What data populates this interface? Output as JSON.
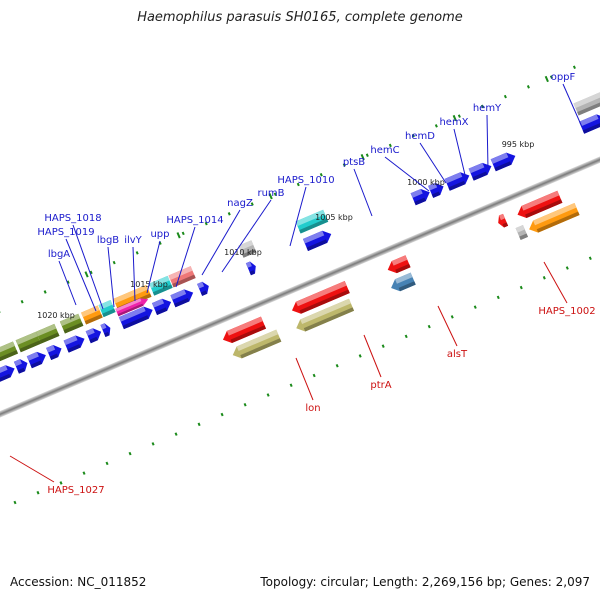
{
  "title": "Haemophilus parasuis SH0165, complete genome",
  "accession_text": "Accession: NC_011852",
  "summary_text": "Topology: circular; Length: 2,269,156 bp; Genes: 2,097",
  "colors": {
    "backbone": "#8a8a8a",
    "tick": "#1a8a1a",
    "label_blue": "#1a1acc",
    "label_red": "#cc1111",
    "forward": "#1414e0",
    "red": "#ee1111",
    "olive": "#6b8e23",
    "khaki": "#bdb76b",
    "orange": "#ff9a10",
    "cyan": "#22cccc",
    "magenta": "#ee22aa",
    "pink": "#ee7777",
    "gray": "#b4b4b4",
    "steel": "#4682b4"
  },
  "scale_labels": [
    "1020 kbp",
    "1015 kbp",
    "1010 kbp",
    "1005 kbp",
    "1000 kbp",
    "995 kbp"
  ],
  "upper_genes": [
    "lbgA",
    "HAPS_1019",
    "HAPS_1018",
    "lbgB",
    "ilvY",
    "upp",
    "HAPS_1014",
    "nagZ",
    "rumB",
    "HAPS_1010",
    "ptsB",
    "hemC",
    "hemD",
    "hemX",
    "hemY",
    "oppF"
  ],
  "lower_genes": [
    "HAPS_1027",
    "lon",
    "ptrA",
    "alsT",
    "HAPS_1002"
  ]
}
